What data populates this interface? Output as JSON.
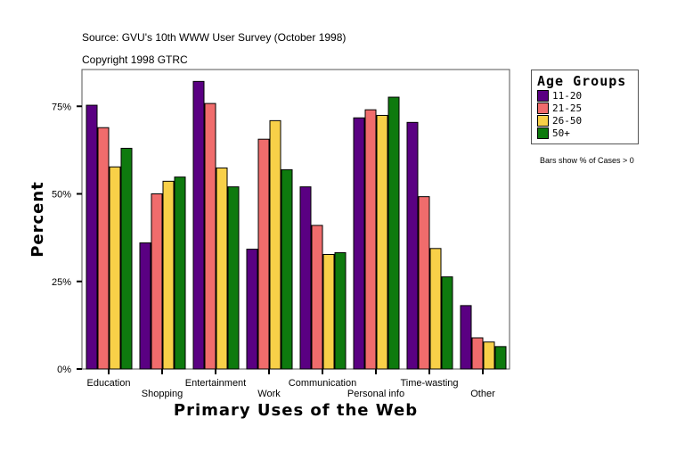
{
  "source": "Source: GVU's 10th WWW User Survey (October 1998)",
  "copyright": "Copyright 1998 GTRC",
  "note": "Bars show % of Cases > 0",
  "chart_data": {
    "type": "bar",
    "xlabel": "Primary Uses of the Web",
    "ylabel": "Percent",
    "ylim": [
      0,
      85
    ],
    "yticks": [
      "0%",
      "25%",
      "50%",
      "75%"
    ],
    "ytick_values": [
      0,
      25,
      50,
      75
    ],
    "grid": false,
    "legend_title": "Age Groups",
    "legend_position": "right",
    "categories": [
      "Education",
      "Shopping",
      "Entertainment",
      "Work",
      "Communication",
      "Personal info",
      "Time-wasting",
      "Other"
    ],
    "series": [
      {
        "name": "11-20",
        "color": "#5a0082",
        "values": [
          75.3,
          36.0,
          82.1,
          34.2,
          52.0,
          71.7,
          70.4,
          18.1
        ]
      },
      {
        "name": "21-25",
        "color": "#f06c6c",
        "values": [
          68.9,
          50.0,
          75.8,
          65.6,
          41.0,
          74.0,
          49.2,
          8.9
        ]
      },
      {
        "name": "26-50",
        "color": "#f8d048",
        "values": [
          57.7,
          53.6,
          57.4,
          70.9,
          32.7,
          72.4,
          34.4,
          7.7
        ]
      },
      {
        "name": "50+",
        "color": "#0e7a0e",
        "values": [
          63.0,
          54.8,
          52.0,
          56.9,
          33.2,
          77.6,
          26.3,
          6.4
        ]
      }
    ]
  }
}
